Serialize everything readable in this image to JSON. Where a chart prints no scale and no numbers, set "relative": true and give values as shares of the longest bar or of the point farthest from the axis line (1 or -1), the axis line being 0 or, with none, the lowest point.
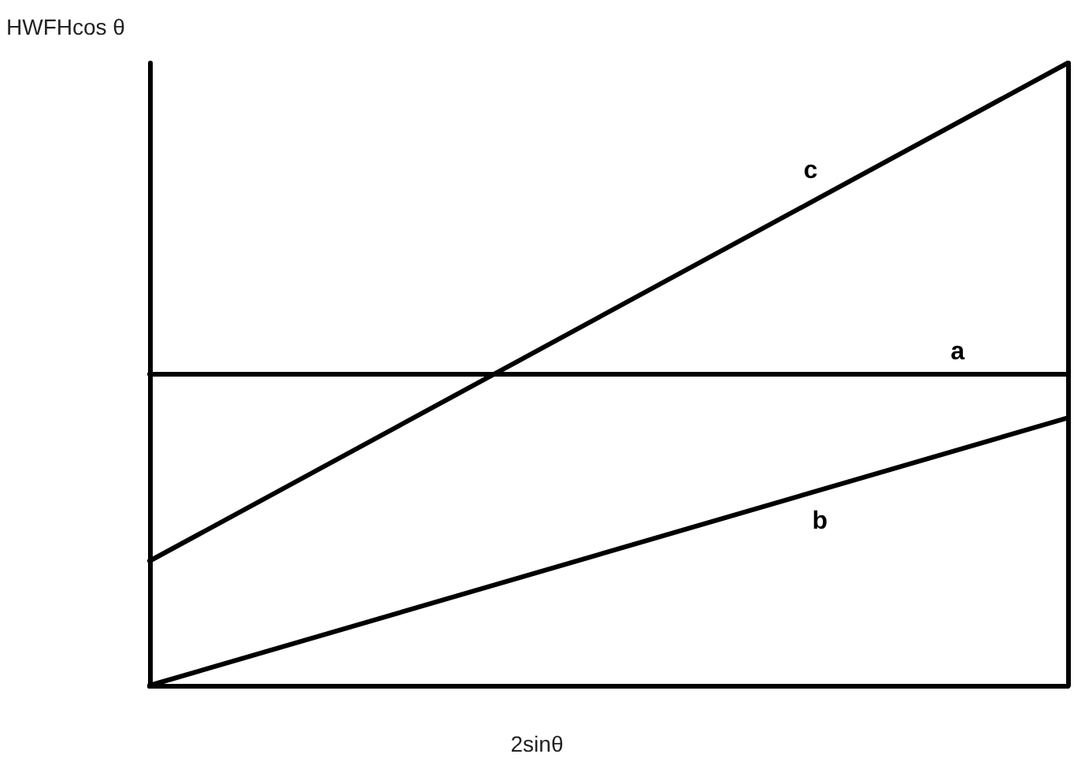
{
  "chart_data": {
    "type": "line",
    "relative": true,
    "xlabel": "2sinθ",
    "ylabel": "HWFHcos θ",
    "categories": [
      null,
      null
    ],
    "marker": "none",
    "line_style": "solid",
    "legend": false,
    "series": [
      {
        "name": "a",
        "color": "#000000",
        "values": [
          0.5,
          0.5
        ]
      },
      {
        "name": "b",
        "color": "#000000",
        "values": [
          0,
          0.43
        ]
      },
      {
        "name": "c",
        "color": "#000000",
        "values": [
          0.2,
          1
        ]
      }
    ]
  }
}
